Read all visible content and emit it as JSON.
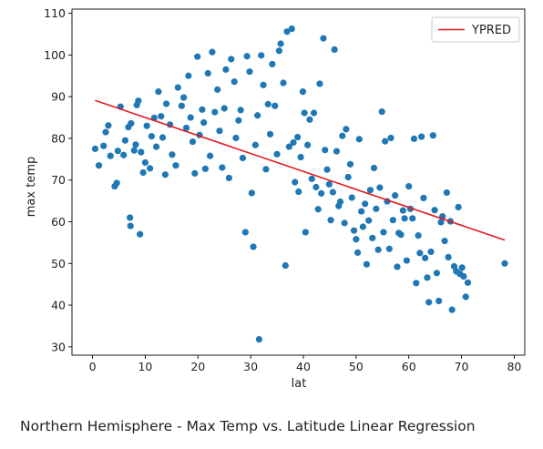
{
  "caption": "Northern Hemisphere - Max Temp vs. Latitude Linear Regression",
  "chart_data": {
    "type": "scatter",
    "title": "",
    "xlabel": "lat",
    "ylabel": "max temp",
    "xlim": [
      -3.9,
      82
    ],
    "ylim": [
      28,
      111
    ],
    "xticks": [
      0,
      10,
      20,
      30,
      40,
      50,
      60,
      70,
      80
    ],
    "yticks": [
      30,
      40,
      50,
      60,
      70,
      80,
      90,
      100,
      110
    ],
    "grid": false,
    "legend": {
      "position": "top-right",
      "entries": [
        "YPRED"
      ]
    },
    "colors": {
      "points": "#1f77b4",
      "regression": "#e31a1c"
    },
    "series": [
      {
        "type": "line",
        "name": "YPRED",
        "points": [
          [
            0.5,
            89.1
          ],
          [
            78.2,
            55.6
          ]
        ]
      },
      {
        "type": "scatter",
        "points": [
          [
            0.5,
            77.5
          ],
          [
            1.2,
            73.5
          ],
          [
            2.1,
            78.2
          ],
          [
            2.5,
            81.5
          ],
          [
            3.0,
            83.1
          ],
          [
            3.4,
            75.8
          ],
          [
            4.2,
            68.5
          ],
          [
            4.6,
            69.3
          ],
          [
            4.8,
            77.0
          ],
          [
            5.3,
            87.6
          ],
          [
            5.9,
            76.0
          ],
          [
            6.2,
            79.5
          ],
          [
            6.8,
            82.7
          ],
          [
            7.1,
            61.0
          ],
          [
            7.2,
            59.0
          ],
          [
            7.3,
            83.6
          ],
          [
            7.9,
            77.1
          ],
          [
            8.2,
            78.5
          ],
          [
            8.4,
            88.0
          ],
          [
            8.7,
            89.0
          ],
          [
            9.0,
            57.0
          ],
          [
            9.2,
            76.7
          ],
          [
            9.6,
            71.8
          ],
          [
            10.0,
            74.2
          ],
          [
            10.3,
            83.0
          ],
          [
            10.9,
            72.8
          ],
          [
            11.2,
            80.5
          ],
          [
            11.7,
            84.9
          ],
          [
            12.1,
            78.0
          ],
          [
            12.5,
            91.2
          ],
          [
            13.0,
            85.3
          ],
          [
            13.3,
            80.2
          ],
          [
            13.8,
            71.3
          ],
          [
            14.0,
            88.3
          ],
          [
            14.7,
            83.3
          ],
          [
            15.1,
            76.1
          ],
          [
            15.8,
            73.5
          ],
          [
            16.2,
            92.2
          ],
          [
            16.9,
            87.8
          ],
          [
            17.3,
            89.8
          ],
          [
            17.8,
            82.5
          ],
          [
            18.2,
            95.0
          ],
          [
            18.6,
            85.0
          ],
          [
            19.0,
            79.2
          ],
          [
            19.4,
            71.6
          ],
          [
            19.9,
            99.6
          ],
          [
            20.3,
            80.8
          ],
          [
            20.8,
            86.9
          ],
          [
            21.1,
            83.8
          ],
          [
            21.4,
            72.7
          ],
          [
            21.9,
            95.6
          ],
          [
            22.3,
            75.8
          ],
          [
            22.7,
            100.7
          ],
          [
            23.2,
            86.3
          ],
          [
            23.7,
            91.7
          ],
          [
            24.1,
            81.8
          ],
          [
            24.6,
            73.0
          ],
          [
            25.0,
            87.2
          ],
          [
            25.3,
            96.5
          ],
          [
            25.9,
            70.5
          ],
          [
            26.3,
            99.0
          ],
          [
            26.9,
            93.6
          ],
          [
            27.2,
            80.1
          ],
          [
            27.7,
            84.3
          ],
          [
            28.1,
            86.8
          ],
          [
            28.5,
            75.3
          ],
          [
            29.0,
            57.5
          ],
          [
            29.3,
            99.7
          ],
          [
            29.8,
            96.0
          ],
          [
            30.2,
            66.9
          ],
          [
            30.5,
            54.0
          ],
          [
            30.9,
            78.4
          ],
          [
            31.3,
            85.5
          ],
          [
            31.6,
            31.8
          ],
          [
            32.0,
            99.9
          ],
          [
            32.4,
            92.8
          ],
          [
            32.9,
            72.6
          ],
          [
            33.3,
            88.2
          ],
          [
            33.7,
            81.0
          ],
          [
            34.1,
            97.8
          ],
          [
            34.6,
            87.8
          ],
          [
            35.0,
            76.2
          ],
          [
            35.4,
            101.0
          ],
          [
            35.7,
            102.7
          ],
          [
            36.2,
            93.3
          ],
          [
            36.6,
            49.5
          ],
          [
            36.9,
            105.6
          ],
          [
            37.3,
            78.0
          ],
          [
            37.8,
            106.3
          ],
          [
            38.1,
            79.0
          ],
          [
            38.4,
            69.5
          ],
          [
            38.9,
            80.3
          ],
          [
            39.1,
            67.2
          ],
          [
            39.5,
            75.5
          ],
          [
            39.9,
            91.2
          ],
          [
            40.2,
            86.1
          ],
          [
            40.4,
            57.5
          ],
          [
            40.8,
            78.4
          ],
          [
            41.2,
            84.5
          ],
          [
            41.6,
            70.3
          ],
          [
            42.0,
            86.1
          ],
          [
            42.4,
            68.3
          ],
          [
            42.8,
            63.0
          ],
          [
            43.1,
            93.1
          ],
          [
            43.4,
            66.8
          ],
          [
            43.8,
            104.0
          ],
          [
            44.1,
            77.2
          ],
          [
            44.5,
            72.5
          ],
          [
            44.9,
            69.0
          ],
          [
            45.2,
            60.4
          ],
          [
            45.6,
            67.1
          ],
          [
            45.9,
            101.3
          ],
          [
            46.3,
            76.9
          ],
          [
            46.7,
            63.8
          ],
          [
            47.0,
            64.8
          ],
          [
            47.4,
            80.6
          ],
          [
            47.8,
            59.7
          ],
          [
            48.1,
            82.2
          ],
          [
            48.5,
            70.7
          ],
          [
            48.9,
            73.8
          ],
          [
            49.2,
            65.8
          ],
          [
            49.6,
            57.9
          ],
          [
            50.0,
            55.8
          ],
          [
            50.3,
            52.6
          ],
          [
            50.6,
            79.8
          ],
          [
            51.0,
            62.5
          ],
          [
            51.3,
            58.8
          ],
          [
            51.7,
            64.3
          ],
          [
            52.0,
            49.8
          ],
          [
            52.4,
            60.3
          ],
          [
            52.7,
            67.6
          ],
          [
            53.1,
            56.1
          ],
          [
            53.4,
            72.9
          ],
          [
            53.8,
            63.1
          ],
          [
            54.2,
            53.3
          ],
          [
            54.5,
            68.2
          ],
          [
            54.9,
            86.4
          ],
          [
            55.2,
            57.5
          ],
          [
            55.5,
            79.3
          ],
          [
            55.9,
            64.9
          ],
          [
            56.3,
            53.5
          ],
          [
            56.6,
            80.1
          ],
          [
            57.0,
            60.4
          ],
          [
            57.4,
            66.3
          ],
          [
            57.8,
            49.2
          ],
          [
            58.1,
            57.3
          ],
          [
            58.5,
            56.9
          ],
          [
            58.9,
            62.7
          ],
          [
            59.2,
            60.8
          ],
          [
            59.6,
            50.7
          ],
          [
            60.0,
            68.5
          ],
          [
            60.3,
            63.1
          ],
          [
            60.7,
            60.8
          ],
          [
            61.0,
            79.9
          ],
          [
            61.4,
            45.3
          ],
          [
            61.8,
            56.7
          ],
          [
            62.1,
            52.5
          ],
          [
            62.4,
            80.4
          ],
          [
            62.8,
            65.7
          ],
          [
            63.1,
            51.3
          ],
          [
            63.5,
            46.6
          ],
          [
            63.8,
            40.7
          ],
          [
            64.2,
            52.8
          ],
          [
            64.6,
            80.7
          ],
          [
            64.9,
            62.8
          ],
          [
            65.3,
            47.7
          ],
          [
            65.7,
            41.0
          ],
          [
            66.1,
            59.9
          ],
          [
            66.4,
            61.3
          ],
          [
            66.8,
            55.4
          ],
          [
            67.2,
            67.0
          ],
          [
            67.5,
            51.5
          ],
          [
            67.9,
            60.1
          ],
          [
            68.2,
            38.9
          ],
          [
            68.6,
            49.3
          ],
          [
            69.0,
            48.1
          ],
          [
            69.4,
            63.5
          ],
          [
            69.7,
            47.5
          ],
          [
            70.1,
            49.0
          ],
          [
            70.4,
            46.9
          ],
          [
            70.8,
            42.0
          ],
          [
            71.2,
            45.4
          ],
          [
            78.2,
            50.0
          ]
        ]
      }
    ]
  }
}
